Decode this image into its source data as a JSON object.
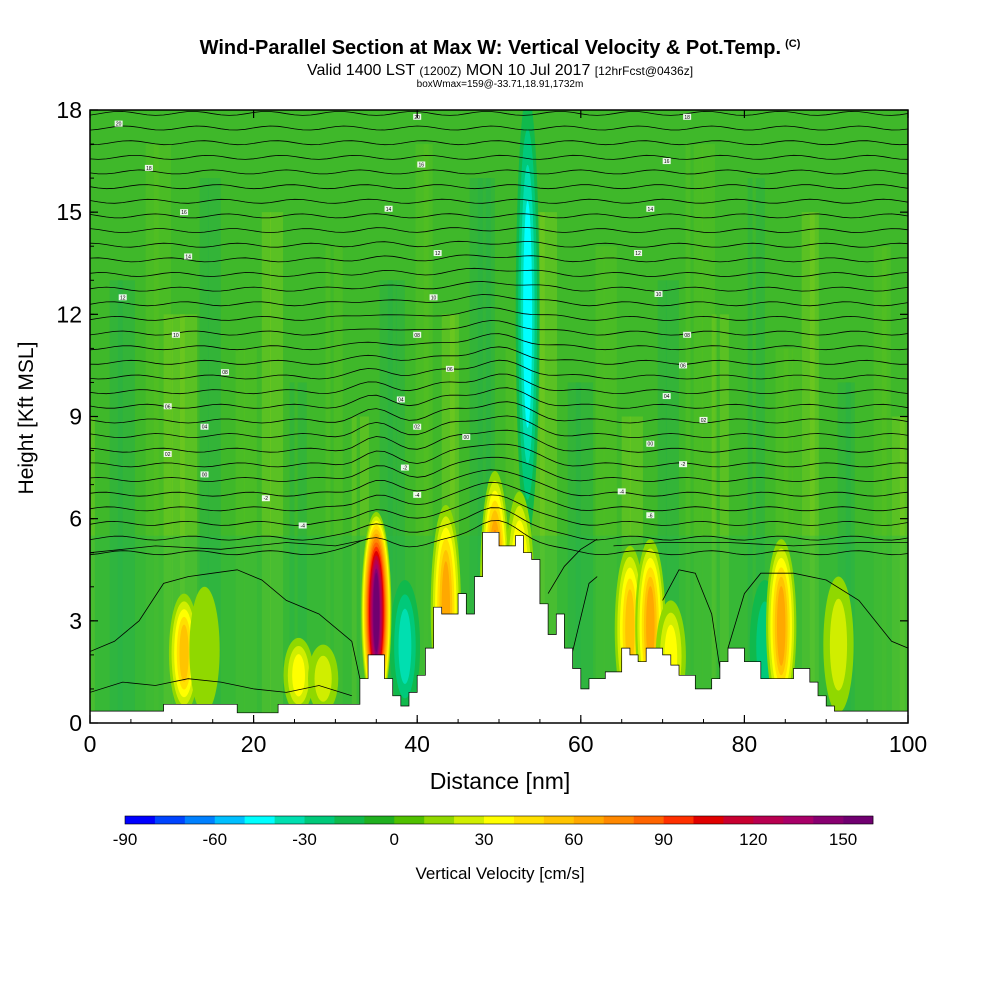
{
  "header": {
    "title": "Wind-Parallel Section at Max W: Vertical Velocity & Pot.Temp.",
    "title_unit": "(C)",
    "subtitle_main": "Valid 1400 LST",
    "subtitle_utc": "(1200Z)",
    "subtitle_date": "MON 10 Jul 2017",
    "subtitle_fcst": "[12hrFcst@0436z]",
    "box_info": "boxWmax=159@-33.71,18.91,1732m"
  },
  "chart_data": {
    "type": "heatmap",
    "title": "Wind-Parallel Section at Max W: Vertical Velocity & Pot.Temp.",
    "xlabel": "Distance [nm]",
    "ylabel": "Height [Kft MSL]",
    "xlim": [
      0,
      100
    ],
    "ylim": [
      0,
      18
    ],
    "x_ticks": [
      0,
      20,
      40,
      60,
      80,
      100
    ],
    "y_ticks": [
      0,
      3,
      6,
      9,
      12,
      15,
      18
    ],
    "colorbar": {
      "label": "Vertical Velocity [cm/s]",
      "min": -90,
      "max": 160,
      "step": 10,
      "tick_values": [
        -90,
        -60,
        -30,
        0,
        30,
        60,
        90,
        120,
        150
      ],
      "colors": [
        "#0000ff",
        "#0044ff",
        "#0080ff",
        "#00bfff",
        "#00ffff",
        "#00dfb0",
        "#00c97a",
        "#10b94c",
        "#20b020",
        "#50c000",
        "#90d800",
        "#d0ee00",
        "#ffff00",
        "#ffe000",
        "#ffc400",
        "#ffa800",
        "#ff8800",
        "#ff6400",
        "#ff3000",
        "#e00000",
        "#c80030",
        "#b80050",
        "#a80068",
        "#880070",
        "#700070"
      ]
    },
    "terrain_kft": [
      [
        0,
        0.35
      ],
      [
        9,
        0.35
      ],
      [
        9,
        0.55
      ],
      [
        18,
        0.55
      ],
      [
        18,
        0.3
      ],
      [
        23,
        0.3
      ],
      [
        23,
        0.55
      ],
      [
        33,
        0.55
      ],
      [
        33,
        1.3
      ],
      [
        34,
        1.3
      ],
      [
        34,
        2
      ],
      [
        36,
        2
      ],
      [
        36,
        1.3
      ],
      [
        37,
        1.3
      ],
      [
        37,
        0.8
      ],
      [
        38,
        0.8
      ],
      [
        38,
        0.5
      ],
      [
        39,
        0.5
      ],
      [
        39,
        0.9
      ],
      [
        40,
        0.9
      ],
      [
        40,
        1.4
      ],
      [
        41,
        1.4
      ],
      [
        41,
        2.2
      ],
      [
        42,
        2.2
      ],
      [
        42,
        3.4
      ],
      [
        43,
        3.4
      ],
      [
        43,
        3.2
      ],
      [
        45,
        3.2
      ],
      [
        45,
        3.8
      ],
      [
        46,
        3.8
      ],
      [
        46,
        3.2
      ],
      [
        47,
        3.2
      ],
      [
        47,
        4.3
      ],
      [
        48,
        4.3
      ],
      [
        48,
        5.6
      ],
      [
        50,
        5.6
      ],
      [
        50,
        5.2
      ],
      [
        52,
        5.2
      ],
      [
        52,
        5.5
      ],
      [
        53,
        5.5
      ],
      [
        53,
        5
      ],
      [
        54,
        5
      ],
      [
        54,
        4.8
      ],
      [
        55,
        4.8
      ],
      [
        55,
        3.5
      ],
      [
        56,
        3.5
      ],
      [
        56,
        2.6
      ],
      [
        57,
        2.6
      ],
      [
        57,
        3.2
      ],
      [
        58,
        3.2
      ],
      [
        58,
        2.2
      ],
      [
        59,
        2.2
      ],
      [
        59,
        1.6
      ],
      [
        60,
        1.6
      ],
      [
        60,
        1
      ],
      [
        61,
        1
      ],
      [
        61,
        1.3
      ],
      [
        63,
        1.3
      ],
      [
        63,
        1.5
      ],
      [
        65,
        1.5
      ],
      [
        65,
        2.2
      ],
      [
        66,
        2.2
      ],
      [
        66,
        2
      ],
      [
        67,
        2
      ],
      [
        67,
        1.8
      ],
      [
        68,
        1.8
      ],
      [
        68,
        2.2
      ],
      [
        70,
        2.2
      ],
      [
        70,
        2
      ],
      [
        71,
        2
      ],
      [
        71,
        1.7
      ],
      [
        72,
        1.7
      ],
      [
        72,
        1.4
      ],
      [
        74,
        1.4
      ],
      [
        74,
        1
      ],
      [
        76,
        1
      ],
      [
        76,
        1.3
      ],
      [
        77,
        1.3
      ],
      [
        77,
        1.8
      ],
      [
        78,
        1.8
      ],
      [
        78,
        2.2
      ],
      [
        80,
        2.2
      ],
      [
        80,
        1.8
      ],
      [
        82,
        1.8
      ],
      [
        82,
        1.3
      ],
      [
        86,
        1.3
      ],
      [
        86,
        1.6
      ],
      [
        88,
        1.6
      ],
      [
        88,
        1.2
      ],
      [
        89,
        1.2
      ],
      [
        89,
        0.8
      ],
      [
        90,
        0.8
      ],
      [
        90,
        0.5
      ],
      [
        91,
        0.5
      ],
      [
        91,
        0.35
      ],
      [
        100,
        0.35
      ]
    ],
    "plumes": [
      {
        "x": 11.5,
        "peak_w": 55,
        "top_kft": 3.8
      },
      {
        "x": 14,
        "peak_w": 15,
        "top_kft": 4
      },
      {
        "x": 25.5,
        "peak_w": 30,
        "top_kft": 2.5
      },
      {
        "x": 28.5,
        "peak_w": 20,
        "top_kft": 2.3
      },
      {
        "x": 35,
        "peak_w": 159,
        "top_kft": 6.2
      },
      {
        "x": 43.5,
        "peak_w": 60,
        "top_kft": 6.4
      },
      {
        "x": 49.5,
        "peak_w": 80,
        "top_kft": 7.4
      },
      {
        "x": 52.5,
        "peak_w": 55,
        "top_kft": 6.8
      },
      {
        "x": 66,
        "peak_w": 50,
        "top_kft": 5.2
      },
      {
        "x": 68.5,
        "peak_w": 60,
        "top_kft": 5.4
      },
      {
        "x": 71,
        "peak_w": 35,
        "top_kft": 3.6
      },
      {
        "x": 84.5,
        "peak_w": 60,
        "top_kft": 5.4
      },
      {
        "x": 91.5,
        "peak_w": 20,
        "top_kft": 4.3
      }
    ],
    "downdrafts": [
      {
        "x": 38.5,
        "peak_w": -30,
        "top_kft": 4.2
      },
      {
        "x": 53.5,
        "peak_w": -45,
        "top_kft": 18
      },
      {
        "x": 82.5,
        "peak_w": -25,
        "top_kft": 4.2
      }
    ],
    "isotherm_labels": [
      {
        "x": 3.5,
        "y": 17.6,
        "text": "20"
      },
      {
        "x": 40,
        "y": 17.8,
        "text": "20"
      },
      {
        "x": 73,
        "y": 17.8,
        "text": "18"
      },
      {
        "x": 7.2,
        "y": 16.3,
        "text": "18"
      },
      {
        "x": 40.5,
        "y": 16.4,
        "text": "16"
      },
      {
        "x": 70.5,
        "y": 16.5,
        "text": "16"
      },
      {
        "x": 11.5,
        "y": 15,
        "text": "16"
      },
      {
        "x": 36.5,
        "y": 15.1,
        "text": "14"
      },
      {
        "x": 68.5,
        "y": 15.1,
        "text": "14"
      },
      {
        "x": 12,
        "y": 13.7,
        "text": "14"
      },
      {
        "x": 42.5,
        "y": 13.8,
        "text": "12"
      },
      {
        "x": 67,
        "y": 13.8,
        "text": "12"
      },
      {
        "x": 4,
        "y": 12.5,
        "text": "12"
      },
      {
        "x": 42,
        "y": 12.5,
        "text": "10"
      },
      {
        "x": 69.5,
        "y": 12.6,
        "text": "10"
      },
      {
        "x": 10.5,
        "y": 11.4,
        "text": "10"
      },
      {
        "x": 40,
        "y": 11.4,
        "text": "08"
      },
      {
        "x": 73,
        "y": 11.4,
        "text": "08"
      },
      {
        "x": 16.5,
        "y": 10.3,
        "text": "08"
      },
      {
        "x": 44,
        "y": 10.4,
        "text": "06"
      },
      {
        "x": 72.5,
        "y": 10.5,
        "text": "06"
      },
      {
        "x": 9.5,
        "y": 9.3,
        "text": "06"
      },
      {
        "x": 38,
        "y": 9.5,
        "text": "04"
      },
      {
        "x": 70.5,
        "y": 9.6,
        "text": "04"
      },
      {
        "x": 14,
        "y": 8.7,
        "text": "04"
      },
      {
        "x": 40,
        "y": 8.7,
        "text": "02"
      },
      {
        "x": 75,
        "y": 8.9,
        "text": "02"
      },
      {
        "x": 9.5,
        "y": 7.9,
        "text": "02"
      },
      {
        "x": 46,
        "y": 8.4,
        "text": "00"
      },
      {
        "x": 68.5,
        "y": 8.2,
        "text": "00"
      },
      {
        "x": 14,
        "y": 7.3,
        "text": "00"
      },
      {
        "x": 38.5,
        "y": 7.5,
        "text": "-2"
      },
      {
        "x": 72.5,
        "y": 7.6,
        "text": "-2"
      },
      {
        "x": 21.5,
        "y": 6.6,
        "text": "-2"
      },
      {
        "x": 40,
        "y": 6.7,
        "text": "-4"
      },
      {
        "x": 65,
        "y": 6.8,
        "text": "-4"
      },
      {
        "x": 26,
        "y": 5.8,
        "text": "-4"
      },
      {
        "x": 68.5,
        "y": 6.1,
        "text": "-6"
      }
    ]
  },
  "graph_labels": {
    "xlabel": "Distance [nm]",
    "ylabel": "Height [Kft MSL]",
    "colorbar_label": "Vertical Velocity [cm/s]"
  }
}
